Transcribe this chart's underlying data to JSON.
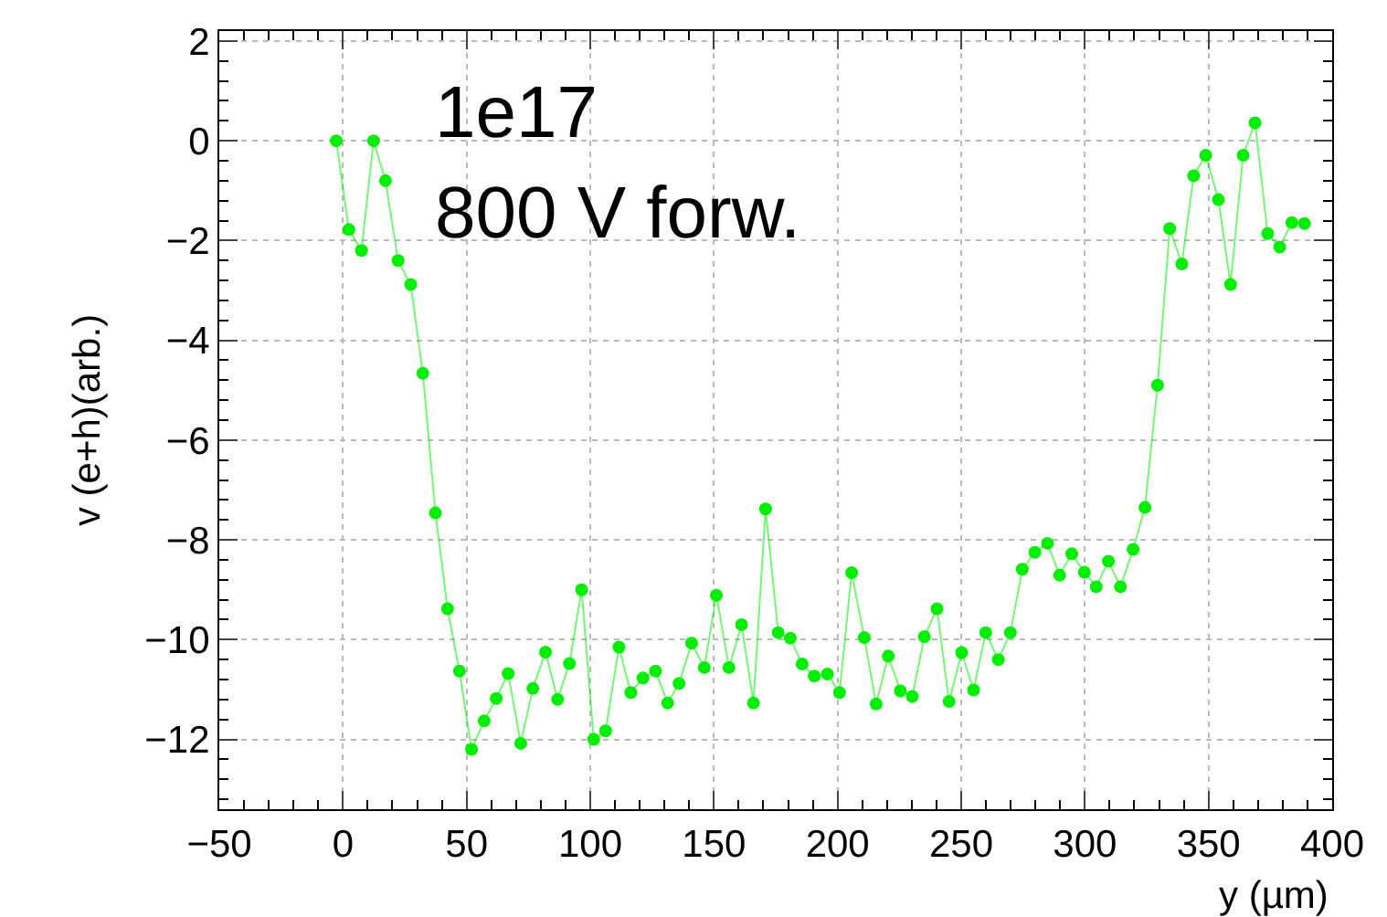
{
  "chart_data": {
    "type": "line",
    "xlabel": "y (µm)",
    "ylabel": "v (e+h)(arb.)",
    "annotations": [
      "1e17",
      "800 V forw."
    ],
    "series": [
      {
        "color": "#00ee00",
        "x": [
          -2.7,
          2.4,
          7.5,
          12.4,
          17.2,
          22.3,
          27.4,
          32.3,
          37.4,
          42.3,
          47.1,
          52,
          57.1,
          62,
          66.8,
          71.9,
          76.8,
          81.9,
          86.8,
          91.6,
          96.5,
          101.4,
          106.2,
          111.6,
          116.4,
          121.3,
          126.4,
          131.3,
          135.9,
          141,
          146.1,
          151,
          156.1,
          161.2,
          166,
          170.9,
          176,
          180.9,
          185.7,
          190.6,
          195.9,
          200.8,
          205.7,
          210.8,
          215.6,
          220.5,
          225.4,
          230.2,
          235.1,
          240.2,
          245.1,
          250.2,
          255,
          259.9,
          265,
          269.9,
          274.7,
          279.8,
          284.9,
          289.8,
          294.7,
          299.8,
          304.6,
          309.5,
          314.4,
          319.5,
          324.3,
          329.4,
          334.3,
          339.2,
          344,
          348.9,
          354,
          358.9,
          364,
          368.8,
          373.9,
          378.8,
          383.7,
          388.8
        ],
        "values": [
          0,
          -1.78,
          -2.2,
          0,
          -0.8,
          -2.4,
          -2.88,
          -4.66,
          -7.46,
          -9.38,
          -10.63,
          -12.2,
          -11.63,
          -11.18,
          -10.68,
          -12.08,
          -10.98,
          -10.25,
          -11.2,
          -10.48,
          -9.0,
          -12.0,
          -11.83,
          -10.15,
          -11.06,
          -10.77,
          -10.63,
          -11.27,
          -10.88,
          -10.07,
          -10.56,
          -9.11,
          -10.56,
          -9.7,
          -11.27,
          -7.38,
          -9.86,
          -9.97,
          -10.49,
          -10.73,
          -10.69,
          -11.06,
          -8.66,
          -9.96,
          -11.29,
          -10.33,
          -11.03,
          -11.14,
          -9.94,
          -9.38,
          -11.24,
          -10.26,
          -11.01,
          -9.86,
          -10.4,
          -9.86,
          -8.59,
          -8.25,
          -8.07,
          -8.71,
          -8.28,
          -8.65,
          -8.94,
          -8.43,
          -8.94,
          -8.19,
          -7.35,
          -4.9,
          -1.76,
          -2.47,
          -0.7,
          -0.29,
          -1.18,
          -2.88,
          -0.29,
          0.36,
          -1.86,
          -2.13,
          -1.64,
          -1.66
        ]
      }
    ],
    "xlim": [
      -50,
      400
    ],
    "xticks": [
      -50,
      0,
      50,
      100,
      150,
      200,
      250,
      300,
      350,
      400
    ],
    "ylim": [
      -13.4,
      2.2
    ],
    "yticks": [
      -12,
      -10,
      -8,
      -6,
      -4,
      -2,
      0,
      2
    ],
    "grid": true,
    "marker": "circle",
    "line_style": "solid"
  }
}
